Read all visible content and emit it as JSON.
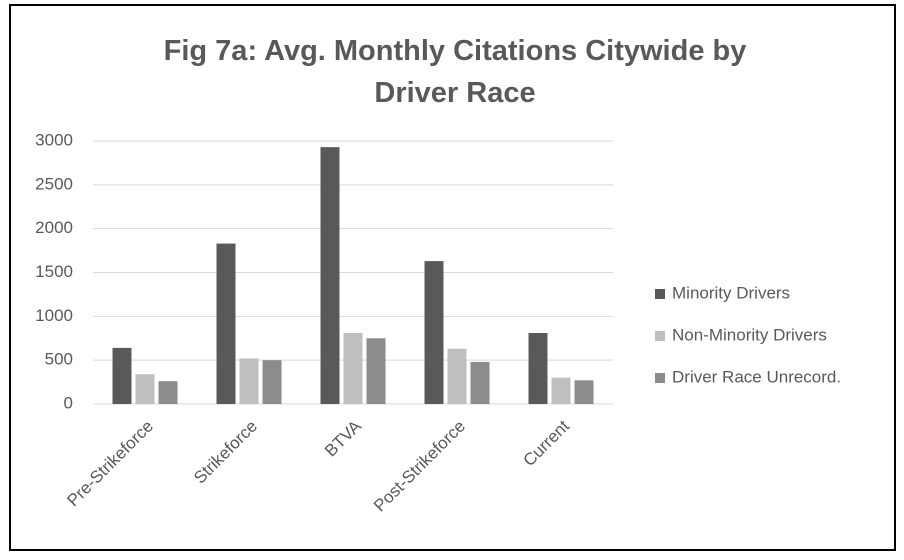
{
  "chart_data": {
    "type": "bar",
    "title": "Fig 7a: Avg. Monthly Citations Citywide by Driver Race",
    "categories": [
      "Pre-Strikeforce",
      "Strikeforce",
      "BTVA",
      "Post-Strikeforce",
      "Current"
    ],
    "series": [
      {
        "name": "Minority Drivers",
        "color": "#595959",
        "values": [
          640,
          1830,
          2930,
          1630,
          810
        ]
      },
      {
        "name": "Non-Minority Drivers",
        "color": "#bfbfbf",
        "values": [
          340,
          520,
          810,
          630,
          300
        ]
      },
      {
        "name": "Driver Race Unrecord.",
        "color": "#8c8c8c",
        "values": [
          260,
          500,
          750,
          480,
          270
        ]
      }
    ],
    "ylim": [
      0,
      3000
    ],
    "yticks": [
      0,
      500,
      1000,
      1500,
      2000,
      2500,
      3000
    ],
    "grid": true,
    "legend": "right"
  }
}
